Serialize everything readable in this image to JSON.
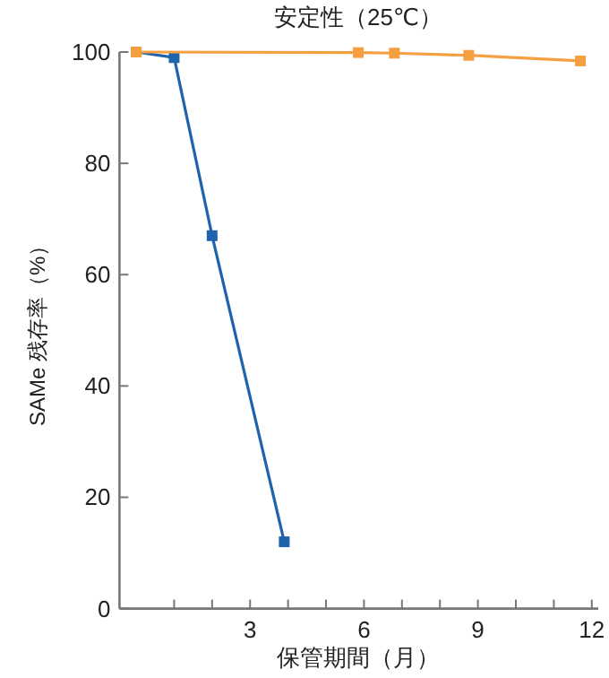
{
  "chart_data": {
    "type": "line",
    "title": "安定性（25℃）",
    "xlabel": "保管期間（月）",
    "ylabel": "SAMe 残存率（%）",
    "series": [
      {
        "color": "#1f63ad",
        "x": [
          0,
          1,
          2,
          3.9
        ],
        "values": [
          100,
          99,
          67,
          12
        ]
      },
      {
        "color": "#f5a040",
        "x": [
          0,
          5.85,
          6.8,
          8.76,
          11.7
        ],
        "values": [
          100,
          99.9,
          99.8,
          99.4,
          98.4
        ]
      }
    ],
    "xlim": [
      -0.44,
      12.17
    ],
    "ylim": [
      0,
      100
    ],
    "xticks": [
      {
        "value": 1,
        "label": null
      },
      {
        "value": 2,
        "label": null
      },
      3,
      {
        "value": 4,
        "label": null
      },
      {
        "value": 5,
        "label": null
      },
      6,
      {
        "value": 7,
        "label": null
      },
      {
        "value": 8,
        "label": null
      },
      9,
      {
        "value": 10,
        "label": null
      },
      {
        "value": 11,
        "label": null
      },
      12
    ],
    "yticks": [
      0,
      20,
      40,
      60,
      80,
      100
    ],
    "marker": "square",
    "line_style": "solid",
    "grid": false
  }
}
